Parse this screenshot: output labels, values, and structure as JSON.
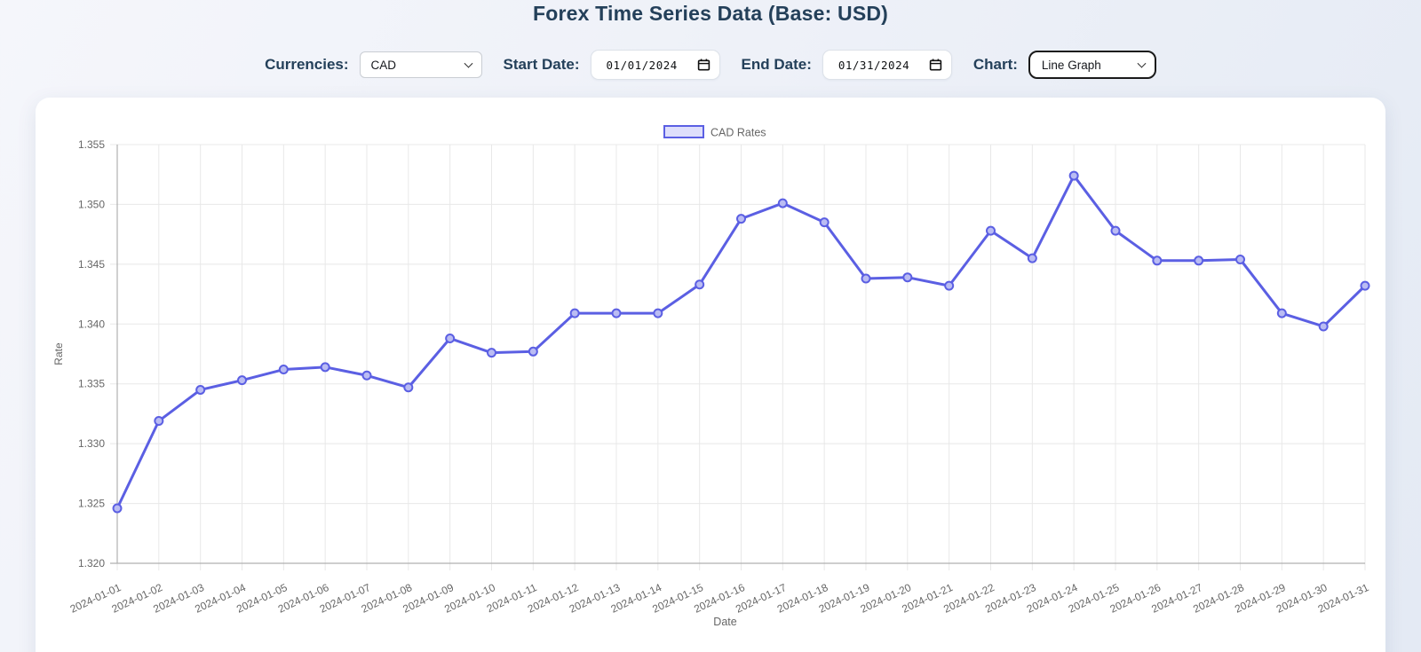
{
  "header": {
    "title": "Forex Time Series Data (Base: USD)"
  },
  "controls": {
    "currencies_label": "Currencies:",
    "currency_value": "CAD",
    "start_date_label": "Start Date:",
    "start_date_value": "01/01/2024",
    "end_date_label": "End Date:",
    "end_date_value": "01/31/2024",
    "chart_label": "Chart:",
    "chart_type_value": "Line Graph"
  },
  "icons": {
    "chevron_down": "⌄",
    "calendar": "▦"
  },
  "chart_data": {
    "type": "line",
    "legend_position": "top-center",
    "grid": true,
    "xlabel": "Date",
    "ylabel": "Rate",
    "ylim": [
      1.32,
      1.355
    ],
    "ytick_step": 0.005,
    "ytick_labels": [
      "1.320",
      "1.325",
      "1.330",
      "1.335",
      "1.340",
      "1.345",
      "1.350",
      "1.355"
    ],
    "x": [
      "2024-01-01",
      "2024-01-02",
      "2024-01-03",
      "2024-01-04",
      "2024-01-05",
      "2024-01-06",
      "2024-01-07",
      "2024-01-08",
      "2024-01-09",
      "2024-01-10",
      "2024-01-11",
      "2024-01-12",
      "2024-01-13",
      "2024-01-14",
      "2024-01-15",
      "2024-01-16",
      "2024-01-17",
      "2024-01-18",
      "2024-01-19",
      "2024-01-20",
      "2024-01-21",
      "2024-01-22",
      "2024-01-23",
      "2024-01-24",
      "2024-01-25",
      "2024-01-26",
      "2024-01-27",
      "2024-01-28",
      "2024-01-29",
      "2024-01-30",
      "2024-01-31"
    ],
    "series": [
      {
        "name": "CAD Rates",
        "values": [
          1.3246,
          1.3319,
          1.3345,
          1.3353,
          1.3362,
          1.3364,
          1.3357,
          1.3347,
          1.3388,
          1.3376,
          1.3377,
          1.3409,
          1.3409,
          1.3409,
          1.3433,
          1.3488,
          1.3501,
          1.3485,
          1.3438,
          1.3439,
          1.3432,
          1.3478,
          1.3455,
          1.3524,
          1.3478,
          1.3453,
          1.3453,
          1.3454,
          1.3409,
          1.3398,
          1.3432
        ]
      }
    ],
    "colors": {
      "line": "#5b5fe3",
      "point_fill": "#babcf3",
      "legend_fill": "#dedefb",
      "grid": "#e8e8e8",
      "axis_border": "#b0b0b0",
      "tick_text": "#666666"
    }
  }
}
